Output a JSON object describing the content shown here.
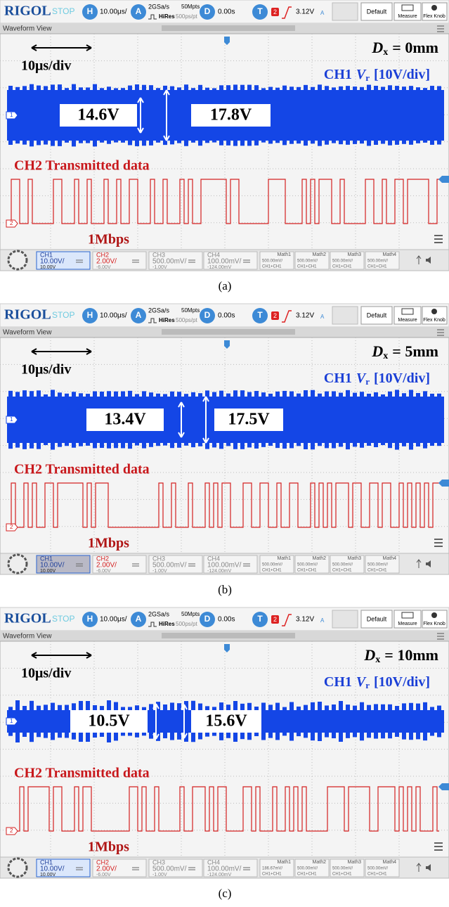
{
  "toolbar": {
    "brand": "RIGOL",
    "run_state": "STOP",
    "h_button": "H",
    "timebase": "10.00μs/",
    "a_button": "A",
    "sample_rate": "2GSa/s",
    "memory_depth": "50Mpts",
    "acq_mode": "HiRes",
    "sample_interval": "500ps/pt",
    "d_button": "D",
    "delay": "0.00s",
    "t_button": "T",
    "trigger_source": "2",
    "trigger_level": "3.12V",
    "trigger_mode": "A",
    "default_button": "Default",
    "measure_button": "Measure",
    "flex_knob_button": "Flex Knob"
  },
  "view_title": "Waveform View",
  "panels": [
    {
      "caption": "(a)",
      "scale_label": "10μs/div",
      "distance": {
        "symbol": "D",
        "subscript": "x",
        "value": "= 0mm"
      },
      "ch1_label": {
        "channel": "CH1",
        "symbol": "V",
        "subscript": "r",
        "scale": "[10V/div]"
      },
      "voltage_min": "14.6V",
      "voltage_max": "17.8V",
      "ch2_label": "CH2 Transmitted data",
      "bit_rate": "1Mbps",
      "channel_markers": [
        "1",
        "2"
      ],
      "channels": [
        {
          "name": "CH1",
          "scale": "10.00V/",
          "offset": "10.00V"
        },
        {
          "name": "CH2",
          "scale": "2.00V/",
          "offset": "-6.00V"
        },
        {
          "name": "CH3",
          "scale": "500.00mV/",
          "offset": "-1.00V"
        },
        {
          "name": "CH4",
          "scale": "100.00mV/",
          "offset": "-124.00mV"
        }
      ],
      "math": [
        {
          "name": "Math1",
          "scale": "500.00mV/",
          "source": "CH1+CH1"
        },
        {
          "name": "Math2",
          "scale": "500.00mV/",
          "source": "CH1+CH1"
        },
        {
          "name": "Math3",
          "scale": "500.00mV/",
          "source": "CH1+CH1"
        },
        {
          "name": "Math4",
          "scale": "500.00mV/",
          "source": "CH1+CH1"
        }
      ]
    },
    {
      "caption": "(b)",
      "scale_label": "10μs/div",
      "distance": {
        "symbol": "D",
        "subscript": "x",
        "value": "= 5mm"
      },
      "ch1_label": {
        "channel": "CH1",
        "symbol": "V",
        "subscript": "r",
        "scale": "[10V/div]"
      },
      "voltage_min": "13.4V",
      "voltage_max": "17.5V",
      "ch2_label": "CH2 Transmitted data",
      "bit_rate": "1Mbps",
      "channel_markers": [
        "1",
        "2"
      ],
      "channels": [
        {
          "name": "CH1",
          "scale": "10.00V/",
          "offset": "10.00V"
        },
        {
          "name": "CH2",
          "scale": "2.00V/",
          "offset": "-6.00V"
        },
        {
          "name": "CH3",
          "scale": "500.00mV/",
          "offset": "-1.00V"
        },
        {
          "name": "CH4",
          "scale": "100.00mV/",
          "offset": "-124.00mV"
        }
      ],
      "math": [
        {
          "name": "Math1",
          "scale": "500.00mV/",
          "source": "CH1+CH1"
        },
        {
          "name": "Math2",
          "scale": "500.00mV/",
          "source": "CH1+CH1"
        },
        {
          "name": "Math3",
          "scale": "500.00mV/",
          "source": "CH1+CH1"
        },
        {
          "name": "Math4",
          "scale": "500.00mV/",
          "source": "CH1+CH1"
        }
      ]
    },
    {
      "caption": "(c)",
      "scale_label": "10μs/div",
      "distance": {
        "symbol": "D",
        "subscript": "x",
        "value": "= 10mm"
      },
      "ch1_label": {
        "channel": "CH1",
        "symbol": "V",
        "subscript": "r",
        "scale": "[10V/div]"
      },
      "voltage_min": "10.5V",
      "voltage_max": "15.6V",
      "ch2_label": "CH2 Transmitted data",
      "bit_rate": "1Mbps",
      "channel_markers": [
        "1",
        "2"
      ],
      "channels": [
        {
          "name": "CH1",
          "scale": "10.00V/",
          "offset": "10.00V"
        },
        {
          "name": "CH2",
          "scale": "2.00V/",
          "offset": "-6.00V"
        },
        {
          "name": "CH3",
          "scale": "500.00mV/",
          "offset": "-1.00V"
        },
        {
          "name": "CH4",
          "scale": "100.00mV/",
          "offset": "-124.00mV"
        }
      ],
      "math": [
        {
          "name": "Math1",
          "scale": "186.67mV/",
          "source": "CH1+CH1"
        },
        {
          "name": "Math2",
          "scale": "500.00mV/",
          "source": "CH1+CH1"
        },
        {
          "name": "Math3",
          "scale": "500.00mV/",
          "source": "CH1+CH1"
        },
        {
          "name": "Math4",
          "scale": "500.00mV/",
          "source": "CH1+CH1"
        }
      ]
    }
  ]
}
